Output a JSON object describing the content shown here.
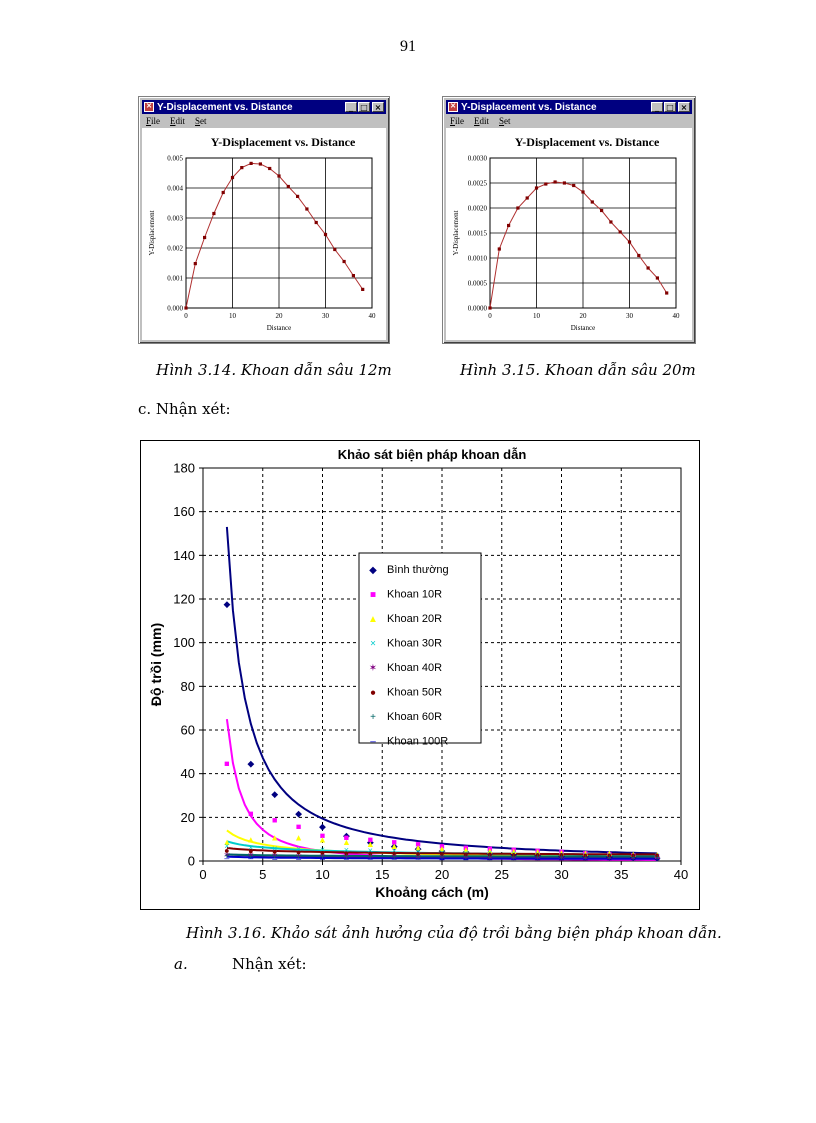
{
  "page": {
    "number": "91"
  },
  "windows": [
    {
      "title": "Y-Displacement vs. Distance",
      "menu": [
        "File",
        "Edit",
        "Set"
      ]
    },
    {
      "title": "Y-Displacement vs. Distance",
      "menu": [
        "File",
        "Edit",
        "Set"
      ]
    }
  ],
  "captions": {
    "fig_3_14": "Hình 3.14. Khoan dẫn sâu 12m",
    "fig_3_15": "Hình 3.15. Khoan dẫn sâu 20m",
    "fig_3_16": "Hình 3.16. Khảo sát ảnh hưởng của độ trồi bằng biện pháp khoan dẫn."
  },
  "text": {
    "section_c": "c.  Nhận xét:",
    "section_a_letter": "a.",
    "section_a_text": "Nhận xét:"
  },
  "colors": {
    "small_line": "#b03030",
    "titlebar": "#000080"
  },
  "chart_data": [
    {
      "type": "line",
      "title": "Y-Displacement vs. Distance",
      "xlabel": "Distance",
      "ylabel": "Y-Displacement",
      "xlim": [
        0,
        40
      ],
      "ylim": [
        0,
        0.005
      ],
      "xticks": [
        "0",
        "10",
        "20",
        "30",
        "40"
      ],
      "yticks": [
        "0.000",
        "0.001",
        "0.002",
        "0.003",
        "0.004",
        "0.005"
      ],
      "grid": true,
      "x": [
        0,
        2,
        4,
        6,
        8,
        10,
        12,
        14,
        16,
        18,
        20,
        22,
        24,
        26,
        28,
        30,
        32,
        34,
        36,
        38
      ],
      "y": [
        0,
        0.00148,
        0.00235,
        0.00315,
        0.00385,
        0.00435,
        0.00468,
        0.00482,
        0.0048,
        0.00465,
        0.0044,
        0.00405,
        0.00372,
        0.0033,
        0.00285,
        0.00245,
        0.00195,
        0.00155,
        0.00108,
        0.00062
      ]
    },
    {
      "type": "line",
      "title": "Y-Displacement vs. Distance",
      "xlabel": "Distance",
      "ylabel": "Y-Displacement",
      "xlim": [
        0,
        40
      ],
      "ylim": [
        0,
        0.003
      ],
      "xticks": [
        "0",
        "10",
        "20",
        "30",
        "40"
      ],
      "yticks": [
        "0.0000",
        "0.0005",
        "0.0010",
        "0.0015",
        "0.0020",
        "0.0025",
        "0.0030"
      ],
      "grid": true,
      "x": [
        0,
        2,
        4,
        6,
        8,
        10,
        12,
        14,
        16,
        18,
        20,
        22,
        24,
        26,
        28,
        30,
        32,
        34,
        36,
        38
      ],
      "y": [
        0,
        0.00118,
        0.00165,
        0.002,
        0.0022,
        0.0024,
        0.00248,
        0.00252,
        0.0025,
        0.00245,
        0.00232,
        0.00212,
        0.00195,
        0.00172,
        0.00152,
        0.00132,
        0.00105,
        0.0008,
        0.0006,
        0.0003
      ]
    },
    {
      "type": "scatter",
      "title": "Khảo sát biện pháp khoan dẫn",
      "xlabel": "Khoảng cách (m)",
      "ylabel": "Độ trồi (mm)",
      "xlim": [
        0,
        40
      ],
      "ylim": [
        0,
        180
      ],
      "xticks": [
        "0",
        "5",
        "10",
        "15",
        "20",
        "25",
        "30",
        "35",
        "40"
      ],
      "yticks": [
        "0",
        "20",
        "40",
        "60",
        "80",
        "100",
        "120",
        "140",
        "160",
        "180"
      ],
      "grid": true,
      "legend_position": "center-left",
      "series": [
        {
          "name": "Bình thường",
          "color": "#000080",
          "marker": "◆",
          "trend": [
            3.5,
            153
          ],
          "x": [
            2,
            4,
            6,
            8,
            10,
            12,
            14,
            16,
            18,
            20,
            22,
            24,
            26,
            28,
            30,
            32,
            34,
            36,
            38
          ],
          "y": [
            118,
            45,
            31,
            22,
            16,
            12,
            9,
            7,
            6,
            5,
            4.5,
            4,
            3.5,
            3,
            2.8,
            2.5,
            2.2,
            2,
            1.8
          ]
        },
        {
          "name": "Khoan 10R",
          "color": "#ff00ff",
          "marker": "■",
          "trend": [
            0,
            65
          ],
          "x": [
            2,
            4,
            6,
            8,
            10,
            12,
            14,
            16,
            18,
            20,
            22,
            24,
            26,
            28,
            30,
            32,
            34,
            36,
            38
          ],
          "y": [
            45,
            22,
            19,
            16,
            12,
            11,
            10,
            9,
            8,
            7,
            6.5,
            6,
            5.5,
            5,
            4.5,
            4,
            3.5,
            3,
            2.5
          ]
        },
        {
          "name": "Khoan 20R",
          "color": "#ffff00",
          "marker": "▲",
          "trend": [
            2,
            14
          ],
          "x": [
            2,
            4,
            6,
            8,
            10,
            12,
            14,
            16,
            18,
            20,
            22,
            24,
            26,
            28,
            30,
            32,
            34,
            36,
            38
          ],
          "y": [
            9,
            10,
            11,
            11,
            10,
            9,
            8,
            7,
            6.5,
            6,
            5.5,
            5,
            4.8,
            4.5,
            4.2,
            4,
            3.8,
            3.5,
            3.2
          ]
        },
        {
          "name": "Khoan 30R",
          "color": "#00cccc",
          "marker": "×",
          "trend": [
            2.8,
            9
          ],
          "x": [
            2,
            4,
            6,
            8,
            10,
            12,
            14,
            16,
            18,
            20,
            22,
            24,
            26,
            28,
            30,
            32,
            34,
            36,
            38
          ],
          "y": [
            7,
            6.5,
            6,
            5.8,
            5.5,
            5.2,
            5,
            4.8,
            4.5,
            4.2,
            4,
            3.8,
            3.6,
            3.4,
            3.2,
            3,
            2.9,
            2.8,
            2.7
          ]
        },
        {
          "name": "Khoan 40R",
          "color": "#800080",
          "marker": "✶",
          "trend": [
            1.5,
            3
          ],
          "x": [
            2,
            4,
            6,
            8,
            10,
            12,
            14,
            16,
            18,
            20,
            22,
            24,
            26,
            28,
            30,
            32,
            34,
            36,
            38
          ],
          "y": [
            3,
            3,
            2.8,
            2.6,
            2.5,
            2.4,
            2.3,
            2.2,
            2.1,
            2,
            2,
            1.9,
            1.9,
            1.8,
            1.8,
            1.7,
            1.7,
            1.6,
            1.6
          ]
        },
        {
          "name": "Khoan 50R",
          "color": "#800000",
          "marker": "●",
          "trend": [
            3,
            6
          ],
          "x": [
            2,
            4,
            6,
            8,
            10,
            12,
            14,
            16,
            18,
            20,
            22,
            24,
            26,
            28,
            30,
            32,
            34,
            36,
            38
          ],
          "y": [
            5,
            4.8,
            4.5,
            4.3,
            4.1,
            4,
            3.9,
            3.8,
            3.7,
            3.6,
            3.5,
            3.4,
            3.3,
            3.2,
            3.1,
            3,
            3,
            2.9,
            2.9
          ]
        },
        {
          "name": "Khoan 60R",
          "color": "#006666",
          "marker": "+",
          "trend": [
            2,
            3
          ],
          "x": [
            2,
            4,
            6,
            8,
            10,
            12,
            14,
            16,
            18,
            20,
            22,
            24,
            26,
            28,
            30,
            32,
            34,
            36,
            38
          ],
          "y": [
            2.5,
            2.4,
            2.4,
            2.3,
            2.3,
            2.2,
            2.2,
            2.1,
            2.1,
            2.1,
            2,
            2,
            2,
            2,
            2,
            1.9,
            1.9,
            1.9,
            1.9
          ]
        },
        {
          "name": "Khoan 100R",
          "color": "#0000cc",
          "marker": "–",
          "trend": [
            1,
            2
          ],
          "x": [
            2,
            4,
            6,
            8,
            10,
            12,
            14,
            16,
            18,
            20,
            22,
            24,
            26,
            28,
            30,
            32,
            34,
            36,
            38
          ],
          "y": [
            1.5,
            1.5,
            1.4,
            1.4,
            1.4,
            1.3,
            1.3,
            1.3,
            1.3,
            1.2,
            1.2,
            1.2,
            1.2,
            1.2,
            1.1,
            1.1,
            1.1,
            1.1,
            1.1
          ]
        }
      ]
    }
  ]
}
